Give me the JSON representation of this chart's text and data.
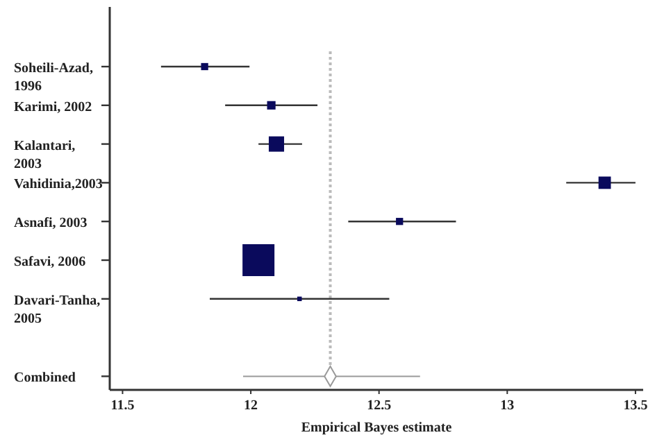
{
  "chart_data": {
    "type": "bubble",
    "orientation": "horizontal",
    "xlabel": "Empirical Bayes estimate",
    "categories": [
      "Soheili-Azad, 1996",
      "Karimi, 2002",
      "Kalantari, 2003",
      "Vahidinia,2003",
      "Asnafi, 2003",
      "Safavi, 2006",
      "Davari-Tanha, 2005",
      null,
      "Combined"
    ],
    "xlim": [
      11.45,
      13.53
    ],
    "xticks": [
      11.5,
      12,
      12.5,
      13,
      13.5
    ],
    "series": [
      {
        "color": "#0a0a5c",
        "marker": "square",
        "values": [
          11.82,
          12.08,
          12.1,
          13.38,
          12.58,
          12.03,
          12.19,
          null,
          null
        ],
        "sizes": [
          0.05,
          0.07,
          0.23,
          0.15,
          0.05,
          1,
          0.02,
          null,
          null
        ],
        "errors": [
          [
            11.65,
            11.995
          ],
          [
            11.9,
            12.26
          ],
          [
            12.03,
            12.2
          ],
          [
            13.23,
            13.5
          ],
          [
            12.38,
            12.8
          ],
          null,
          [
            11.84,
            12.54
          ],
          null,
          null
        ]
      },
      {
        "type": "scatter",
        "color": "#ffffff",
        "marker": "diamond",
        "values": [
          null,
          null,
          null,
          null,
          null,
          null,
          null,
          null,
          12.31
        ],
        "errors": [
          null,
          null,
          null,
          null,
          null,
          null,
          null,
          null,
          [
            11.97,
            12.66
          ]
        ]
      }
    ],
    "ref_lines": [
      {
        "axis": "x",
        "value": 12.31,
        "color": "#bbbbbb",
        "line_style": "dotted"
      }
    ]
  }
}
